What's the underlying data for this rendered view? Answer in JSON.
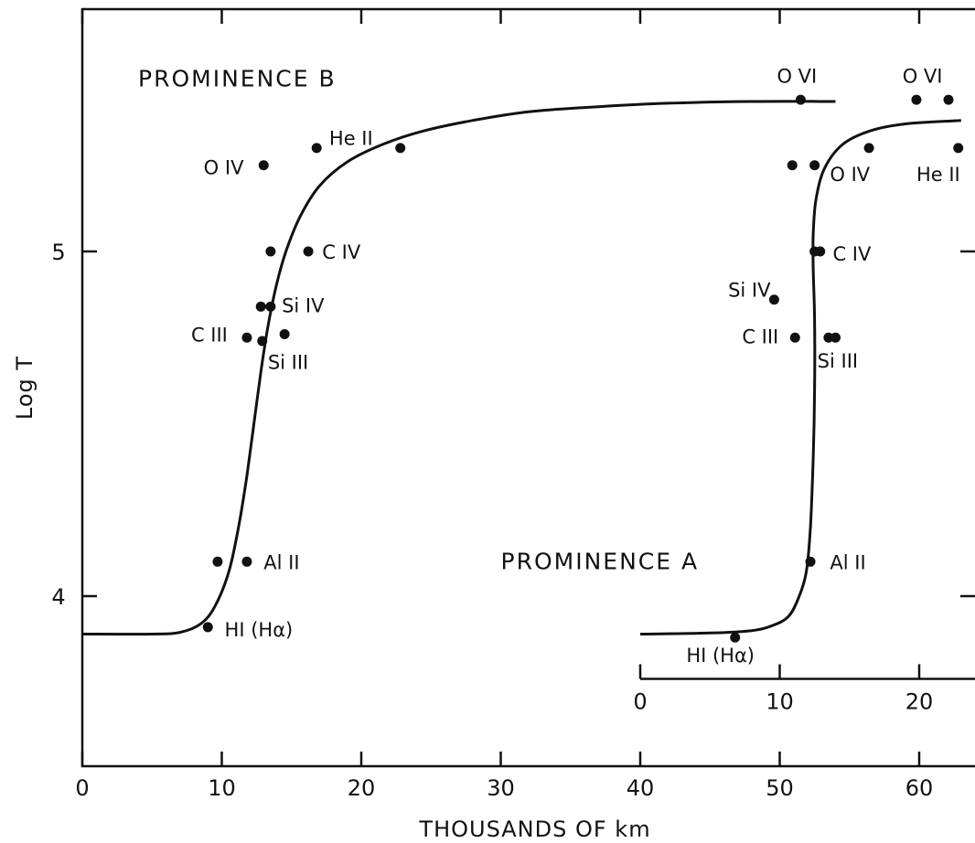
{
  "chart_data": {
    "type": "line",
    "xlabel": "THOUSANDS OF km",
    "ylabel": "Log T",
    "xlim": [
      0,
      65
    ],
    "ylim": [
      3.65,
      5.7
    ],
    "x_ticks": [
      0,
      10,
      20,
      30,
      40,
      50,
      60
    ],
    "y_ticks": [
      4,
      5
    ],
    "grid": false,
    "inset_axis": {
      "x_offset": 40,
      "y_value": 3.76,
      "ticks": [
        0,
        10,
        20
      ]
    },
    "series": [
      {
        "name": "PROMINENCE B",
        "curve": [
          [
            0,
            3.89
          ],
          [
            5,
            3.89
          ],
          [
            7,
            3.895
          ],
          [
            8.5,
            3.92
          ],
          [
            9.5,
            3.97
          ],
          [
            10.5,
            4.07
          ],
          [
            11.2,
            4.2
          ],
          [
            11.8,
            4.35
          ],
          [
            12.3,
            4.5
          ],
          [
            12.8,
            4.65
          ],
          [
            13.3,
            4.78
          ],
          [
            13.9,
            4.9
          ],
          [
            14.6,
            5.0
          ],
          [
            15.6,
            5.1
          ],
          [
            17,
            5.19
          ],
          [
            19,
            5.26
          ],
          [
            21.5,
            5.31
          ],
          [
            24.5,
            5.35
          ],
          [
            28,
            5.38
          ],
          [
            32,
            5.405
          ],
          [
            37,
            5.42
          ],
          [
            42,
            5.43
          ],
          [
            48,
            5.435
          ],
          [
            54,
            5.435
          ]
        ],
        "points": [
          {
            "x": 9,
            "y": 3.91,
            "label": "HI (Hα)"
          },
          {
            "x": 9.7,
            "y": 4.1
          },
          {
            "x": 11.8,
            "y": 4.1,
            "label": "Al II"
          },
          {
            "x": 11.8,
            "y": 4.75,
            "label": "C III"
          },
          {
            "x": 12.9,
            "y": 4.74
          },
          {
            "x": 14.5,
            "y": 4.76,
            "label": "Si III"
          },
          {
            "x": 12.8,
            "y": 4.84
          },
          {
            "x": 13.5,
            "y": 4.84,
            "label": "Si IV"
          },
          {
            "x": 13.5,
            "y": 5.0
          },
          {
            "x": 16.2,
            "y": 5.0,
            "label": "C IV"
          },
          {
            "x": 13,
            "y": 5.25,
            "label": "O IV"
          },
          {
            "x": 16.8,
            "y": 5.3,
            "label": "He II"
          },
          {
            "x": 22.8,
            "y": 5.3
          },
          {
            "x": 51.5,
            "y": 5.44,
            "label": "O VI"
          }
        ]
      },
      {
        "name": "PROMINENCE A",
        "curve": [
          [
            40,
            3.89
          ],
          [
            45,
            3.893
          ],
          [
            48,
            3.9
          ],
          [
            49.5,
            3.915
          ],
          [
            50.6,
            3.94
          ],
          [
            51.3,
            3.99
          ],
          [
            51.9,
            4.07
          ],
          [
            52.2,
            4.2
          ],
          [
            52.4,
            4.4
          ],
          [
            52.5,
            4.6
          ],
          [
            52.5,
            4.8
          ],
          [
            52.4,
            4.95
          ],
          [
            52.4,
            5.05
          ],
          [
            52.6,
            5.15
          ],
          [
            53.2,
            5.24
          ],
          [
            54.5,
            5.31
          ],
          [
            56.5,
            5.35
          ],
          [
            59,
            5.37
          ],
          [
            63,
            5.38
          ]
        ],
        "points": [
          {
            "x": 46.8,
            "y": 3.88,
            "label": "HI (Hα)"
          },
          {
            "x": 52.2,
            "y": 4.1,
            "label": "Al II"
          },
          {
            "x": 51.1,
            "y": 4.75,
            "label": "C III"
          },
          {
            "x": 53.5,
            "y": 4.75
          },
          {
            "x": 54,
            "y": 4.75,
            "label": "Si III"
          },
          {
            "x": 49.6,
            "y": 4.86,
            "label": "Si IV"
          },
          {
            "x": 52.5,
            "y": 5.0
          },
          {
            "x": 52.9,
            "y": 5.0,
            "label": "C IV"
          },
          {
            "x": 50.9,
            "y": 5.25
          },
          {
            "x": 52.5,
            "y": 5.25,
            "label": "O IV"
          },
          {
            "x": 56.4,
            "y": 5.3
          },
          {
            "x": 62.8,
            "y": 5.3,
            "label": "He II"
          },
          {
            "x": 59.8,
            "y": 5.44
          },
          {
            "x": 62.1,
            "y": 5.44,
            "label": "O VI"
          }
        ]
      }
    ],
    "annotations": [
      {
        "text": "PROMINENCE B",
        "x": 4,
        "y": 5.5,
        "kind": "title"
      },
      {
        "text": "PROMINENCE A",
        "x": 30,
        "y": 4.1,
        "kind": "title"
      },
      {
        "text": "HI (Hα)",
        "x": 10.2,
        "y": 3.905
      },
      {
        "text": "Al II",
        "x": 13,
        "y": 4.1
      },
      {
        "text": "C III",
        "x": 7.8,
        "y": 4.76
      },
      {
        "text": "Si III",
        "x": 13.3,
        "y": 4.68
      },
      {
        "text": "Si IV",
        "x": 14.3,
        "y": 4.845
      },
      {
        "text": "C IV",
        "x": 17.2,
        "y": 5.0
      },
      {
        "text": "O IV",
        "x": 8.7,
        "y": 5.245
      },
      {
        "text": "He II",
        "x": 17.7,
        "y": 5.33
      },
      {
        "text": "O VI",
        "x": 49.8,
        "y": 5.51
      },
      {
        "text": "O VI",
        "x": 58.8,
        "y": 5.51
      },
      {
        "text": "O IV",
        "x": 53.6,
        "y": 5.225
      },
      {
        "text": "He II",
        "x": 59.8,
        "y": 5.225
      },
      {
        "text": "C IV",
        "x": 53.8,
        "y": 4.995
      },
      {
        "text": "Si IV",
        "x": 46.3,
        "y": 4.89
      },
      {
        "text": "C III",
        "x": 47.3,
        "y": 4.755
      },
      {
        "text": "Si III",
        "x": 52.7,
        "y": 4.685
      },
      {
        "text": "Al II",
        "x": 53.6,
        "y": 4.1
      },
      {
        "text": "HI (Hα)",
        "x": 43.3,
        "y": 3.83
      }
    ]
  }
}
